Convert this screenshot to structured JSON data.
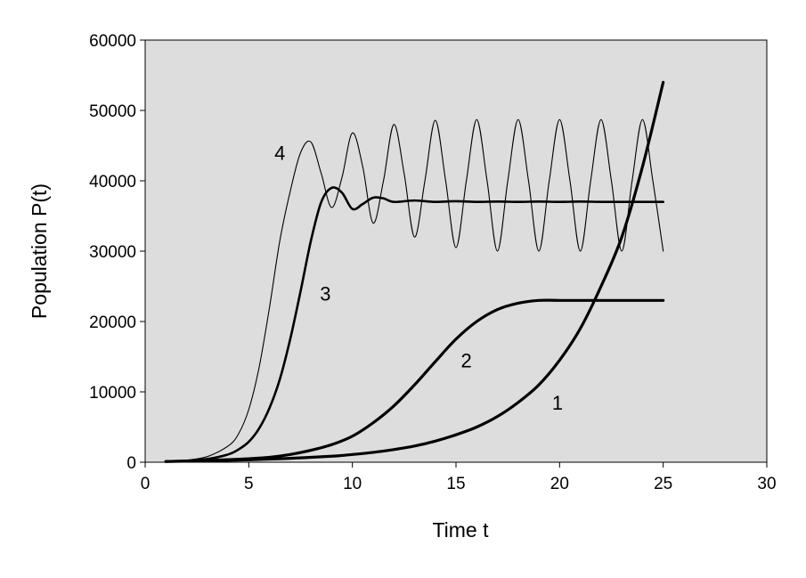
{
  "chart_data": {
    "type": "line",
    "xlabel": "Time t",
    "ylabel": "Population P(t)",
    "xlim": [
      0,
      30
    ],
    "ylim": [
      0,
      60000
    ],
    "x_ticks": [
      "0",
      "5",
      "10",
      "15",
      "20",
      "25",
      "30"
    ],
    "y_ticks": [
      "0",
      "10000",
      "20000",
      "30000",
      "40000",
      "50000",
      "60000"
    ],
    "grid": false,
    "plot_background": "#dddddd",
    "line_color": "#000000",
    "series": [
      {
        "name": "1",
        "style": "thick",
        "x": [
          1,
          3,
          5,
          7,
          9,
          10,
          11,
          12,
          13,
          14,
          15,
          16,
          17,
          18,
          19,
          20,
          21,
          22,
          23,
          24,
          25
        ],
        "y": [
          100,
          200,
          350,
          550,
          850,
          1100,
          1400,
          1800,
          2300,
          3000,
          3900,
          5000,
          6500,
          8500,
          11000,
          14500,
          19000,
          25000,
          32000,
          42000,
          54000
        ]
      },
      {
        "name": "2",
        "style": "thick",
        "x": [
          1,
          3,
          5,
          6,
          7,
          8,
          9,
          10,
          11,
          12,
          13,
          14,
          15,
          16,
          17,
          18,
          19,
          20,
          22,
          25
        ],
        "y": [
          100,
          250,
          500,
          700,
          1100,
          1700,
          2500,
          3700,
          5600,
          8000,
          11000,
          14300,
          17500,
          20000,
          21700,
          22600,
          23000,
          23000,
          23000,
          23000
        ]
      },
      {
        "name": "3",
        "style": "medium",
        "x": [
          1,
          2,
          3,
          4,
          4.5,
          5,
          5.5,
          6,
          6.5,
          7,
          7.5,
          8,
          8.5,
          9,
          9.5,
          10,
          10.5,
          11,
          11.5,
          12,
          13,
          14,
          15,
          16,
          17,
          18,
          19,
          20,
          21,
          22,
          23,
          24,
          25
        ],
        "y": [
          100,
          200,
          450,
          1100,
          1800,
          2900,
          4800,
          7700,
          11800,
          17500,
          24300,
          31500,
          37000,
          39000,
          38300,
          36000,
          36700,
          37600,
          37500,
          37000,
          37200,
          37000,
          37100,
          37000,
          37050,
          37000,
          37050,
          37000,
          37050,
          37000,
          37000,
          37000,
          37000
        ]
      },
      {
        "name": "4",
        "style": "thin",
        "x": [
          1,
          2,
          3,
          4,
          4.5,
          5,
          5.5,
          6,
          6.5,
          7,
          7.5,
          8,
          8.5,
          9,
          9.5,
          10,
          10.5,
          11,
          11.5,
          12,
          12.5,
          13,
          13.5,
          14,
          14.5,
          15,
          15.5,
          16,
          16.5,
          17,
          17.5,
          18,
          18.5,
          19,
          19.5,
          20,
          20.5,
          21,
          21.5,
          22,
          22.5,
          23,
          23.5,
          24,
          24.5,
          25
        ],
        "y": [
          100,
          300,
          800,
          2300,
          4000,
          7500,
          13500,
          22000,
          31500,
          38500,
          44000,
          45500,
          41000,
          36200,
          40500,
          46800,
          42000,
          34000,
          40000,
          48000,
          41000,
          32000,
          40000,
          48600,
          40000,
          30500,
          40000,
          48700,
          40000,
          30000,
          40000,
          48700,
          40000,
          30000,
          40000,
          48700,
          40000,
          30000,
          40000,
          48700,
          40000,
          30000,
          40000,
          48700,
          40000,
          30000
        ]
      }
    ],
    "label_positions": [
      {
        "text": "1",
        "x": 19.9,
        "y": 8500
      },
      {
        "text": "2",
        "x": 15.5,
        "y": 14500
      },
      {
        "text": "3",
        "x": 8.7,
        "y": 24000
      },
      {
        "text": "4",
        "x": 6.5,
        "y": 44000
      }
    ]
  }
}
